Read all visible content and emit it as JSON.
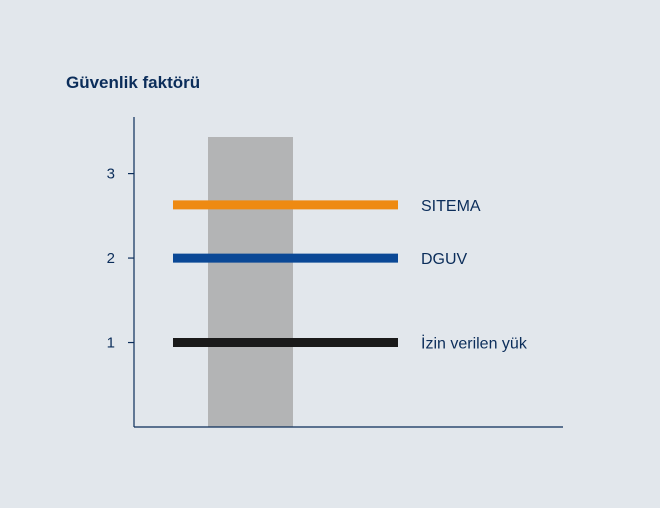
{
  "chart_data": {
    "type": "line",
    "title": "Güvenlik faktörü",
    "xlabel": "",
    "ylabel": "",
    "ylim": [
      0,
      3.67
    ],
    "yticks": [
      1,
      2,
      3
    ],
    "ytick_labels": [
      "1",
      "2",
      "3"
    ],
    "grid": false,
    "band": {
      "color": "#b3b4b5"
    },
    "series": [
      {
        "name": "SITEMA",
        "value": 2.63,
        "color": "#ee8a12"
      },
      {
        "name": "DGUV",
        "value": 2.0,
        "color": "#0a4896"
      },
      {
        "name": "İzin verilen yük",
        "value": 1.0,
        "color": "#1a1a1a"
      }
    ],
    "colors": {
      "background": "#e2e7ec",
      "text": "#0b2d5a",
      "axis": "#0b2d5a"
    }
  }
}
